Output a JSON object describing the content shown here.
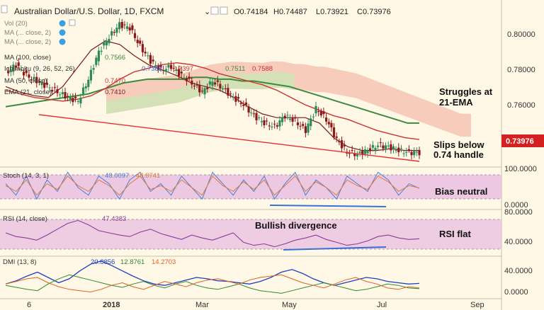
{
  "header": {
    "title": "Australian Dollar/U.S. Dollar, 1D, FXCM",
    "open": "O0.74184",
    "high": "H0.74487",
    "low": "L0.73921",
    "close": "C0.73976"
  },
  "indicator_labels": {
    "vol": "Vol (20)",
    "ma1": "MA (... close, 2)",
    "ma2": "MA (... close, 2)",
    "ma100": "MA (100, close)",
    "ma100_val": "0.7566",
    "ichimoku": "Ichimoku (9, 26, 52, 26)",
    "ichi_v1": "0.7383",
    "ichi_v2": "0.7397",
    "ichi_v3": "0.7511",
    "ichi_v4": "0.7588",
    "ma50": "MA (50, close)",
    "ma50_val": "0.7470",
    "ema21": "EMA (21, close)",
    "ema21_val": "0.7410",
    "stoch": "Stoch (14, 3, 1)",
    "stoch_k": "48.0097",
    "stoch_d": "48.8741",
    "rsi": "RSI (14, close)",
    "rsi_val": "47.4383",
    "dmi": "DMI (13, 8)",
    "dmi_v1": "20.8856",
    "dmi_v2": "12.8761",
    "dmi_v3": "14.2703"
  },
  "annotations": {
    "ema": "Struggles at 21-EMA",
    "handle": "Slips below 0.74 handle",
    "bias": "Bias neutral",
    "divergence": "Bullish divergence",
    "rsi": "RSI flat"
  },
  "colors": {
    "background": "#fff8e6",
    "candle_up": "#2e8b57",
    "candle_down": "#8b1a1a",
    "ma100": "#3c8b3c",
    "ma50": "#c83232",
    "ema21": "#7a1a1a",
    "cloud_bear": "#f5c0b0",
    "cloud_bull": "#cfe3b6",
    "trend_line": "#e53030",
    "price_badge": "#d42020",
    "stoch_band": "#e5b8e0",
    "stoch_k": "#4a7fd4",
    "stoch_d": "#e07b3a",
    "rsi_band": "#e8bde0",
    "rsi_line": "#8a3c9a",
    "divergence_line": "#3a6fd8",
    "dmi_adx": "#1f3fbf",
    "dmi_plus": "#2e8b2e",
    "dmi_minus": "#e06020"
  },
  "chart_data": [
    {
      "type": "candlestick",
      "title": "Australian Dollar/U.S. Dollar, 1D, FXCM",
      "x_tick_labels": [
        "6",
        "2018",
        "Mar",
        "May",
        "Jul",
        "Sep"
      ],
      "y_tick_labels": [
        "0.80000",
        "0.78000",
        "0.76000"
      ],
      "ylim": [
        0.7335,
        0.8125
      ],
      "last_price_label": "0.73976",
      "series_weekly_close": [
        0.783,
        0.788,
        0.782,
        0.779,
        0.776,
        0.773,
        0.77,
        0.768,
        0.78,
        0.795,
        0.803,
        0.81,
        0.808,
        0.798,
        0.79,
        0.785,
        0.787,
        0.782,
        0.778,
        0.773,
        0.779,
        0.775,
        0.77,
        0.766,
        0.76,
        0.756,
        0.754,
        0.76,
        0.757,
        0.752,
        0.764,
        0.758,
        0.747,
        0.74,
        0.739,
        0.741,
        0.744,
        0.743,
        0.741,
        0.74,
        0.7398
      ],
      "ma100": [
        0.765,
        0.766,
        0.767,
        0.768,
        0.769,
        0.77,
        0.771,
        0.772,
        0.774,
        0.776,
        0.778,
        0.779,
        0.78,
        0.78,
        0.78,
        0.78,
        0.781,
        0.781,
        0.78,
        0.78,
        0.779,
        0.779,
        0.778,
        0.777,
        0.776,
        0.774,
        0.772,
        0.77,
        0.768,
        0.766,
        0.764,
        0.762,
        0.76,
        0.758,
        0.756,
        0.756
      ],
      "ma50": [
        0.774,
        0.772,
        0.77,
        0.769,
        0.768,
        0.769,
        0.771,
        0.775,
        0.78,
        0.784,
        0.786,
        0.788,
        0.789,
        0.788,
        0.786,
        0.783,
        0.781,
        0.779,
        0.777,
        0.774,
        0.77,
        0.766,
        0.763,
        0.76,
        0.758,
        0.755,
        0.752,
        0.75,
        0.748,
        0.747
      ],
      "ema21": [
        0.776,
        0.773,
        0.771,
        0.77,
        0.776,
        0.786,
        0.796,
        0.801,
        0.799,
        0.793,
        0.788,
        0.785,
        0.782,
        0.778,
        0.776,
        0.774,
        0.77,
        0.765,
        0.761,
        0.759,
        0.759,
        0.759,
        0.756,
        0.748,
        0.743,
        0.741,
        0.741,
        0.742,
        0.741,
        0.741
      ]
    },
    {
      "type": "line",
      "title": "Stoch (14, 3, 1)",
      "y_tick_labels": [
        "100.0000",
        "0.0000"
      ],
      "ylim": [
        0,
        100
      ],
      "band": [
        20,
        80
      ],
      "series": [
        {
          "values": [
            60,
            30,
            80,
            20,
            70,
            40,
            90,
            50,
            30,
            80,
            60,
            20,
            70,
            90,
            40,
            60,
            30,
            80,
            50,
            20,
            90,
            60,
            30,
            70,
            40,
            80,
            20,
            60,
            90,
            30,
            70,
            50,
            20,
            80,
            60,
            40,
            90,
            70,
            30,
            60,
            48
          ]
        },
        {
          "values": [
            55,
            40,
            70,
            30,
            60,
            45,
            80,
            55,
            40,
            70,
            55,
            30,
            60,
            80,
            45,
            55,
            40,
            70,
            50,
            30,
            80,
            55,
            40,
            65,
            45,
            70,
            30,
            55,
            80,
            40,
            65,
            50,
            30,
            70,
            55,
            45,
            80,
            65,
            40,
            55,
            49
          ]
        }
      ]
    },
    {
      "type": "line",
      "title": "RSI (14, close)",
      "y_tick_labels": [
        "80.0000",
        "40.0000"
      ],
      "ylim": [
        25,
        85
      ],
      "band": [
        30,
        70
      ],
      "series": [
        {
          "values": [
            55,
            50,
            48,
            45,
            52,
            60,
            68,
            72,
            66,
            58,
            55,
            52,
            50,
            56,
            60,
            54,
            50,
            46,
            52,
            48,
            45,
            50,
            55,
            42,
            38,
            40,
            36,
            40,
            45,
            48,
            52,
            46,
            42,
            38,
            40,
            44,
            50,
            52,
            48,
            46,
            47
          ]
        }
      ]
    },
    {
      "type": "line",
      "title": "DMI (13, 8)",
      "y_tick_labels": [
        "40.0000",
        "0.0000"
      ],
      "ylim": [
        0,
        60
      ],
      "series": [
        {
          "values": [
            20,
            25,
            32,
            38,
            30,
            22,
            28,
            40,
            50,
            55,
            48,
            40,
            32,
            25,
            20,
            18,
            22,
            26,
            30,
            28,
            25,
            24,
            22,
            20,
            24,
            30,
            38,
            42,
            36,
            28,
            22,
            18,
            22,
            26,
            30,
            28,
            24,
            22,
            20,
            21
          ]
        },
        {
          "values": [
            18,
            15,
            12,
            10,
            20,
            28,
            34,
            30,
            26,
            22,
            18,
            15,
            20,
            24,
            18,
            14,
            20,
            24,
            18,
            14,
            12,
            16,
            20,
            14,
            10,
            8,
            6,
            10,
            14,
            18,
            22,
            18,
            14,
            10,
            12,
            16,
            20,
            18,
            14,
            13
          ]
        },
        {
          "values": [
            20,
            24,
            28,
            30,
            22,
            16,
            12,
            10,
            8,
            12,
            18,
            22,
            16,
            12,
            18,
            24,
            20,
            16,
            22,
            26,
            28,
            24,
            20,
            26,
            30,
            32,
            34,
            28,
            22,
            18,
            14,
            20,
            26,
            30,
            24,
            20,
            14,
            12,
            16,
            14
          ]
        }
      ]
    }
  ]
}
